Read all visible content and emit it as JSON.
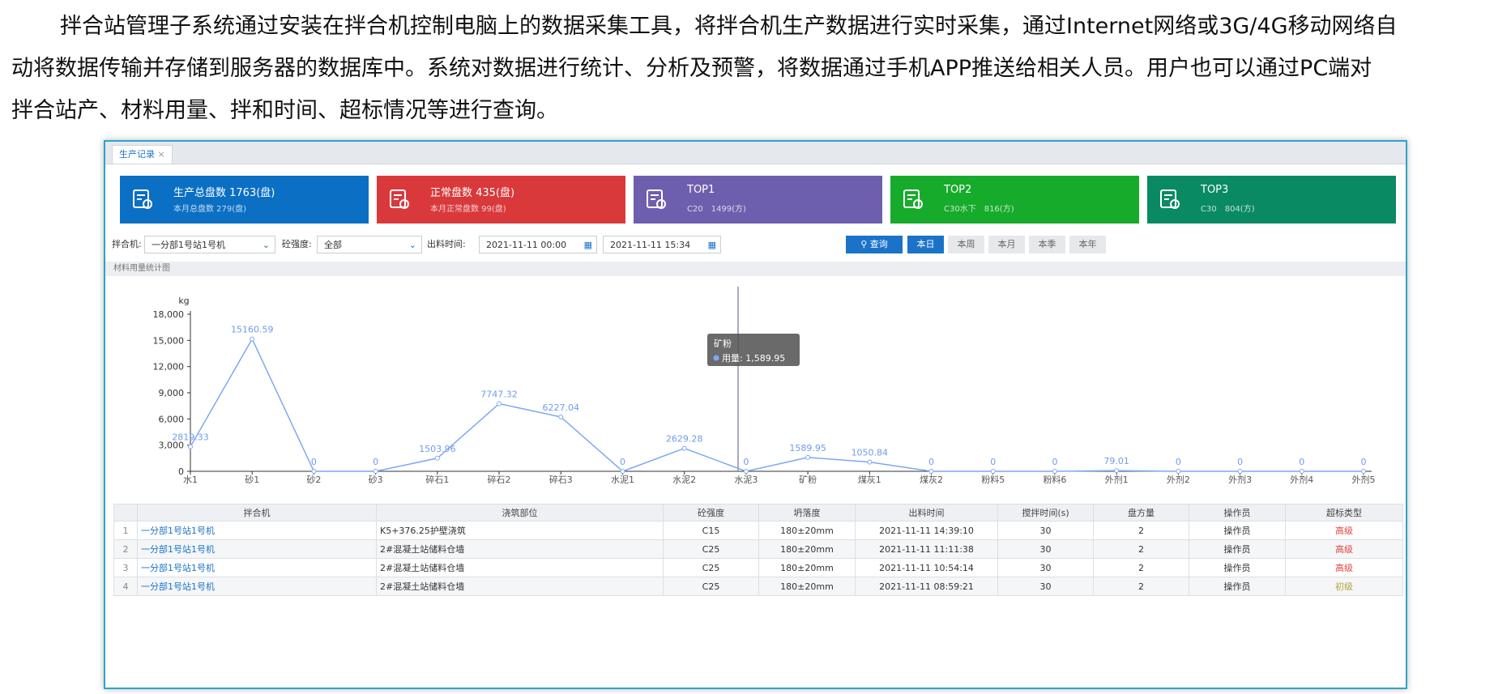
{
  "paragraph": [
    "拌合站管理子系统通过安装在拌合机控制电脑上的数据采集工具，将拌合机生产数据进行实时采集，通过Internet网络或3G/4G移动网络自",
    "动将数据传输并存储到服务器的数据库中。系统对数据进行统计、分析及预警，将数据通过手机APP推送给相关人员。用户也可以通过PC端对",
    "拌合站产、材料用量、拌和时间、超标情况等进行查询。"
  ],
  "screenshot": {
    "tab": "生产记录",
    "cards": [
      {
        "title": "生产总盘数 1763(盘)",
        "subtitle": "本月总盘数 279(盘)",
        "color": "#0b6fc4"
      },
      {
        "title": "正常盘数 435(盘)",
        "subtitle": "本月正常盘数 99(盘)",
        "color": "#d9393b"
      },
      {
        "title": "TOP1",
        "subtitle": "C20　1499(方)",
        "color": "#6e5fae"
      },
      {
        "title": "TOP2",
        "subtitle": "C30水下　816(方)",
        "color": "#17ab2b"
      },
      {
        "title": "TOP3",
        "subtitle": "C30　804(方)",
        "color": "#0a8a63"
      }
    ],
    "filter": {
      "mixer_label": "拌合机:",
      "mixer": "一分部1号站1号机",
      "strength_label": "砼强度:",
      "strength": "全部",
      "time_label": "出料时间:",
      "start": "2021-11-11 00:00",
      "end": "2021-11-11 15:34",
      "query": "查询",
      "ranges": [
        "本日",
        "本周",
        "本月",
        "本季",
        "本年"
      ]
    },
    "section": "材料用量统计图",
    "table": {
      "headers": [
        "拌合机",
        "浇筑部位",
        "砼强度",
        "坍落度",
        "出料时间",
        "搅拌时间(s)",
        "盘方量",
        "操作员",
        "超标类型"
      ],
      "rows": [
        [
          "1",
          "一分部1号站1号机",
          "K5+376.25护壁浇筑",
          "C15",
          "180±20mm",
          "2021-11-11 14:39:10",
          "30",
          "2",
          "操作员",
          "高级"
        ],
        [
          "2",
          "一分部1号站1号机",
          "2#混凝土站储料仓墙",
          "C25",
          "180±20mm",
          "2021-11-11 11:11:38",
          "30",
          "2",
          "操作员",
          "高级"
        ],
        [
          "3",
          "一分部1号站1号机",
          "2#混凝土站储料仓墙",
          "C25",
          "180±20mm",
          "2021-11-11 10:54:14",
          "30",
          "2",
          "操作员",
          "高级"
        ],
        [
          "4",
          "一分部1号站1号机",
          "2#混凝土站储料仓墙",
          "C25",
          "180±20mm",
          "2021-11-11 08:59:21",
          "30",
          "2",
          "操作员",
          "初级"
        ]
      ],
      "level_colors": {
        "高级": "#e2453c",
        "初级": "#b3a53c"
      }
    }
  },
  "chart_data": {
    "type": "line",
    "y_unit": "kg",
    "color": "#7ea8f0",
    "categories": [
      "水1",
      "砂1",
      "砂2",
      "砂3",
      "碎石1",
      "碎石2",
      "碎石3",
      "水泥1",
      "水泥2",
      "水泥3",
      "矿粉",
      "煤灰1",
      "煤灰2",
      "粉料5",
      "粉料6",
      "外剂1",
      "外剂2",
      "外剂3",
      "外剂4",
      "外剂5"
    ],
    "values": [
      2819.33,
      15160.59,
      0,
      0,
      1503.96,
      7747.32,
      6227.04,
      0,
      2629.28,
      0,
      1589.95,
      1050.84,
      0,
      0,
      0,
      79.01,
      0,
      0,
      0,
      0
    ],
    "ylim": [
      0,
      18000
    ],
    "yticks": [
      0,
      {
        "value": 3000,
        "label": "3,000"
      },
      {
        "value": 6000,
        "label": "6,000"
      },
      {
        "value": 9000,
        "label": "9,000"
      },
      {
        "value": 12000,
        "label": "12,000"
      },
      {
        "value": 15000,
        "label": "15,000"
      },
      {
        "value": 18000,
        "label": "18,000"
      }
    ],
    "tooltip": {
      "title": "矿粉",
      "text": "用量: 1,589.95"
    }
  }
}
